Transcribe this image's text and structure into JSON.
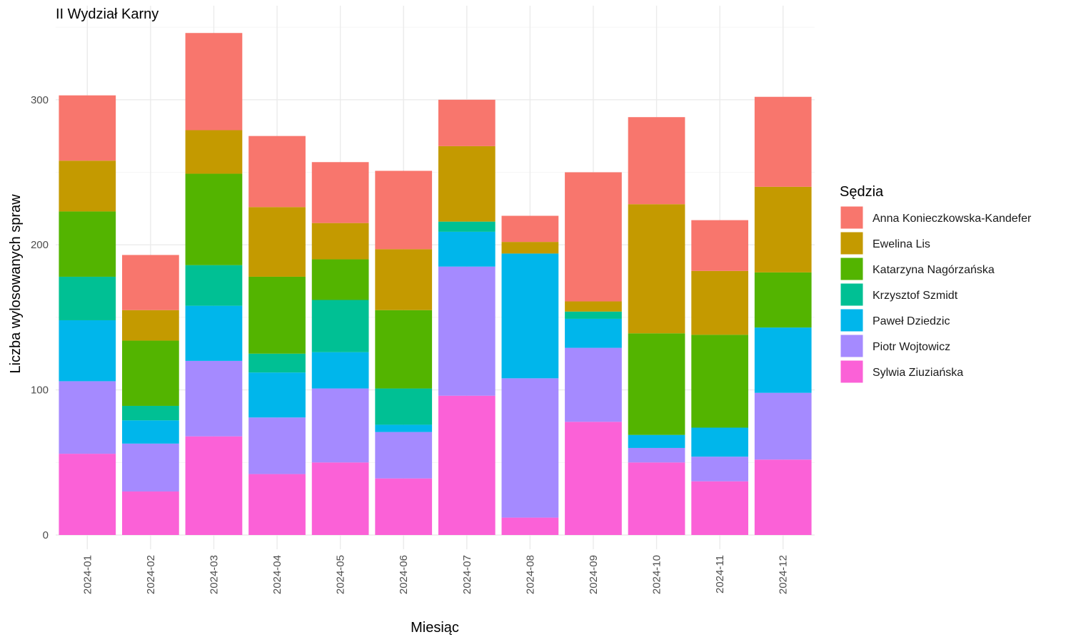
{
  "chart_data": {
    "type": "bar",
    "stacked": true,
    "title": "II Wydział Karny",
    "xlabel": "Miesiąc",
    "ylabel": "Liczba wylosowanych spraw",
    "ylim": [
      0,
      345
    ],
    "yticks": [
      0,
      100,
      200,
      300
    ],
    "grid": true,
    "legend_title": "Sędzia",
    "legend_position": "right",
    "categories": [
      "2024-01",
      "2024-02",
      "2024-03",
      "2024-04",
      "2024-05",
      "2024-06",
      "2024-07",
      "2024-08",
      "2024-09",
      "2024-10",
      "2024-11",
      "2024-12"
    ],
    "series": [
      {
        "name": "Sylwia Ziuziańska",
        "color": "#FB61D7",
        "values": [
          56,
          30,
          68,
          42,
          50,
          39,
          96,
          12,
          78,
          50,
          37,
          52
        ]
      },
      {
        "name": "Piotr Wojtowicz",
        "color": "#A58AFF",
        "values": [
          50,
          33,
          52,
          39,
          51,
          32,
          89,
          96,
          51,
          10,
          17,
          46
        ]
      },
      {
        "name": "Paweł Dziedzic",
        "color": "#00B6EB",
        "values": [
          42,
          16,
          38,
          31,
          25,
          5,
          24,
          86,
          20,
          9,
          20,
          45
        ]
      },
      {
        "name": "Krzysztof Szmidt",
        "color": "#00C094",
        "values": [
          30,
          10,
          28,
          13,
          36,
          25,
          7,
          0,
          5,
          0,
          0,
          0
        ]
      },
      {
        "name": "Katarzyna Nagórzańska",
        "color": "#53B400",
        "values": [
          45,
          45,
          63,
          53,
          28,
          54,
          0,
          0,
          0,
          70,
          64,
          38
        ]
      },
      {
        "name": "Ewelina Lis",
        "color": "#C49A00",
        "values": [
          35,
          21,
          30,
          48,
          25,
          42,
          52,
          8,
          7,
          89,
          44,
          59
        ]
      },
      {
        "name": "Anna Konieczkowska-Kandefer",
        "color": "#F8766D",
        "values": [
          45,
          38,
          67,
          49,
          42,
          54,
          32,
          18,
          89,
          60,
          35,
          62
        ]
      }
    ],
    "legend_order": [
      "Anna Konieczkowska-Kandefer",
      "Ewelina Lis",
      "Katarzyna Nagórzańska",
      "Krzysztof Szmidt",
      "Paweł Dziedzic",
      "Piotr Wojtowicz",
      "Sylwia Ziuziańska"
    ]
  }
}
